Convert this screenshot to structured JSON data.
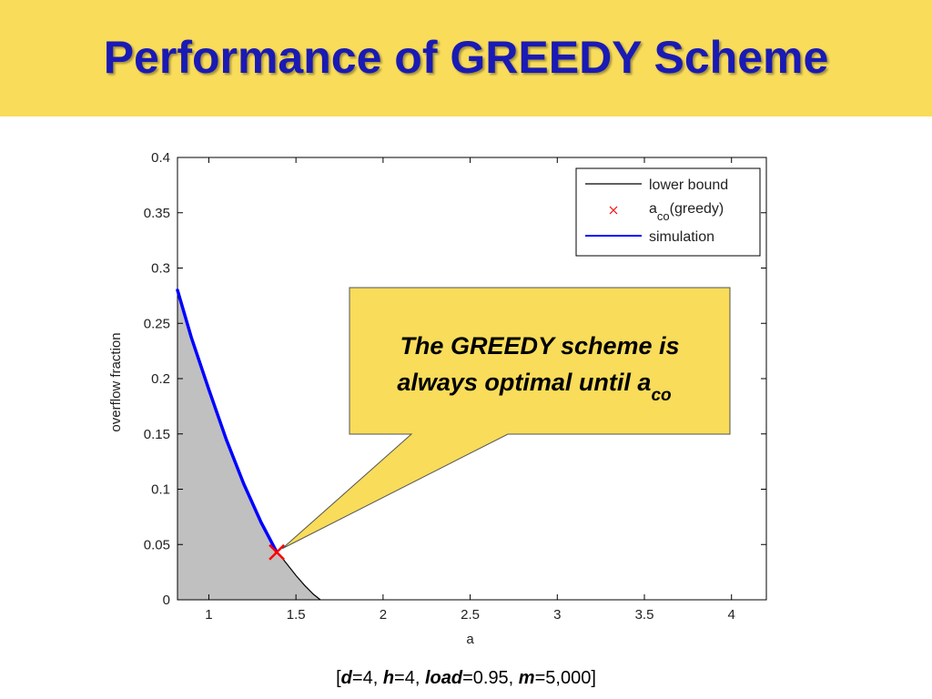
{
  "slide": {
    "title": "Performance of GREEDY Scheme"
  },
  "callout": {
    "line1": "The GREEDY scheme is",
    "line2": "always optimal until a",
    "line2_sub": "co"
  },
  "footnote": {
    "open": "[",
    "d_label": "d",
    "d_value": "=4, ",
    "h_label": "h",
    "h_value": "=4, ",
    "load_label": "load",
    "load_value": "=0.95, ",
    "m_label": "m",
    "m_value": "=5,000]"
  },
  "colors": {
    "title_bar": "#f8dc5a",
    "title_text": "#1a1ab4",
    "callout_fill": "#f8dc5a",
    "shade": "#c0c0c0",
    "lower_bound": "#000000",
    "simulation": "#0000ff",
    "aco_marker": "#ff0000"
  },
  "chart_data": {
    "type": "line",
    "xlabel": "a",
    "ylabel": "overflow fraction",
    "xlim": [
      0.82,
      4.2
    ],
    "ylim": [
      0,
      0.4
    ],
    "xticks": [
      1,
      1.5,
      2,
      2.5,
      3,
      3.5,
      4
    ],
    "xtick_labels": [
      "1",
      "1.5",
      "2",
      "2.5",
      "3",
      "3.5",
      "4"
    ],
    "yticks": [
      0,
      0.05,
      0.1,
      0.15,
      0.2,
      0.25,
      0.3,
      0.35,
      0.4
    ],
    "ytick_labels": [
      "0",
      "0.05",
      "0.1",
      "0.15",
      "0.2",
      "0.25",
      "0.3",
      "0.35",
      "0.4"
    ],
    "grid": false,
    "legend_position": "top-right",
    "series": [
      {
        "name": "lower bound",
        "style": "line",
        "color": "#000000",
        "x": [
          0.82,
          0.9,
          1.0,
          1.1,
          1.2,
          1.3,
          1.4,
          1.45,
          1.5,
          1.55,
          1.6,
          1.64
        ],
        "y": [
          0.28,
          0.237,
          0.19,
          0.145,
          0.105,
          0.07,
          0.042,
          0.032,
          0.022,
          0.013,
          0.005,
          0.0
        ]
      },
      {
        "name": "a_co(greedy)",
        "legend_main": "a",
        "legend_sub": "co",
        "legend_rest": "(greedy)",
        "style": "marker",
        "color": "#ff0000",
        "x": [
          1.39
        ],
        "y": [
          0.043
        ]
      },
      {
        "name": "simulation",
        "style": "line",
        "color": "#0000ff",
        "x": [
          0.82,
          0.9,
          1.0,
          1.1,
          1.2,
          1.3,
          1.35,
          1.39
        ],
        "y": [
          0.28,
          0.237,
          0.19,
          0.145,
          0.105,
          0.07,
          0.055,
          0.043
        ]
      }
    ]
  }
}
